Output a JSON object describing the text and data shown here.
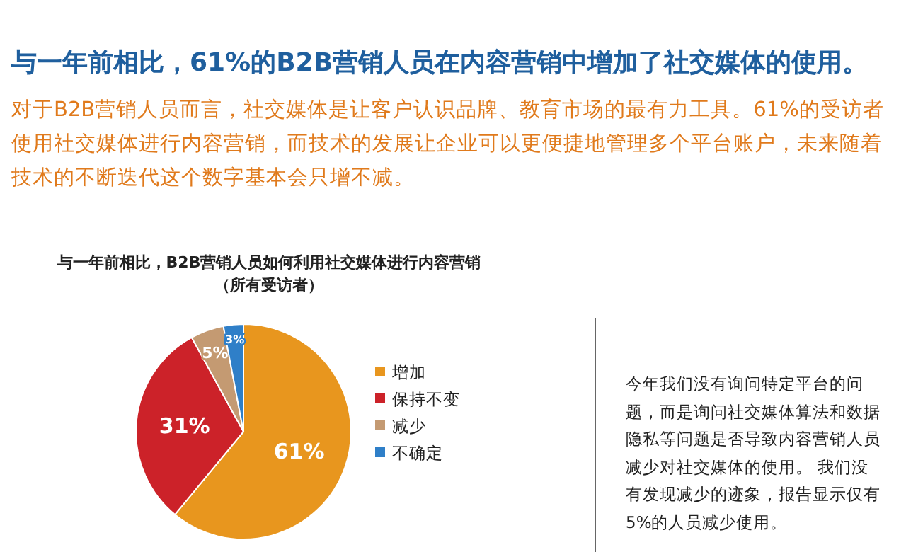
{
  "chart_data": {
    "type": "pie",
    "title": "与一年前相比，61%的B2B营销人员在内容营销中增加了社交媒体的使用。",
    "subtitle": "对于B2B营销人员而言，社交媒体是让客户认识品牌、教育市场的最有力工具。61%的受访者使用社交媒体进行内容营销，而技术的发展让企业可以更便捷地管理多个平台账户，未来随着技术的不断迭代这个数字基本会只增不减。",
    "annotations": [
      "与一年前相比，B2B营销人员如何利用社交媒体进行内容营销（所有受访者）",
      "今年我们没有询问特定平台的问题，而是询问社交媒体算法和数据隐私等问题是否导致内容营销人员减少对社交媒体的使用。 我们没有发现减少的迹象，报告显示仅有5%的人员减少使用。"
    ],
    "categories": [
      "增加",
      "保持不变",
      "减少",
      "不确定"
    ],
    "values": [
      61,
      31,
      5,
      3
    ],
    "colors": [
      "#e8961e",
      "#cc2229",
      "#c49a72",
      "#2f7fc8"
    ],
    "value_labels": [
      "61%",
      "31%",
      "5%",
      "3%"
    ],
    "legend": "right"
  }
}
